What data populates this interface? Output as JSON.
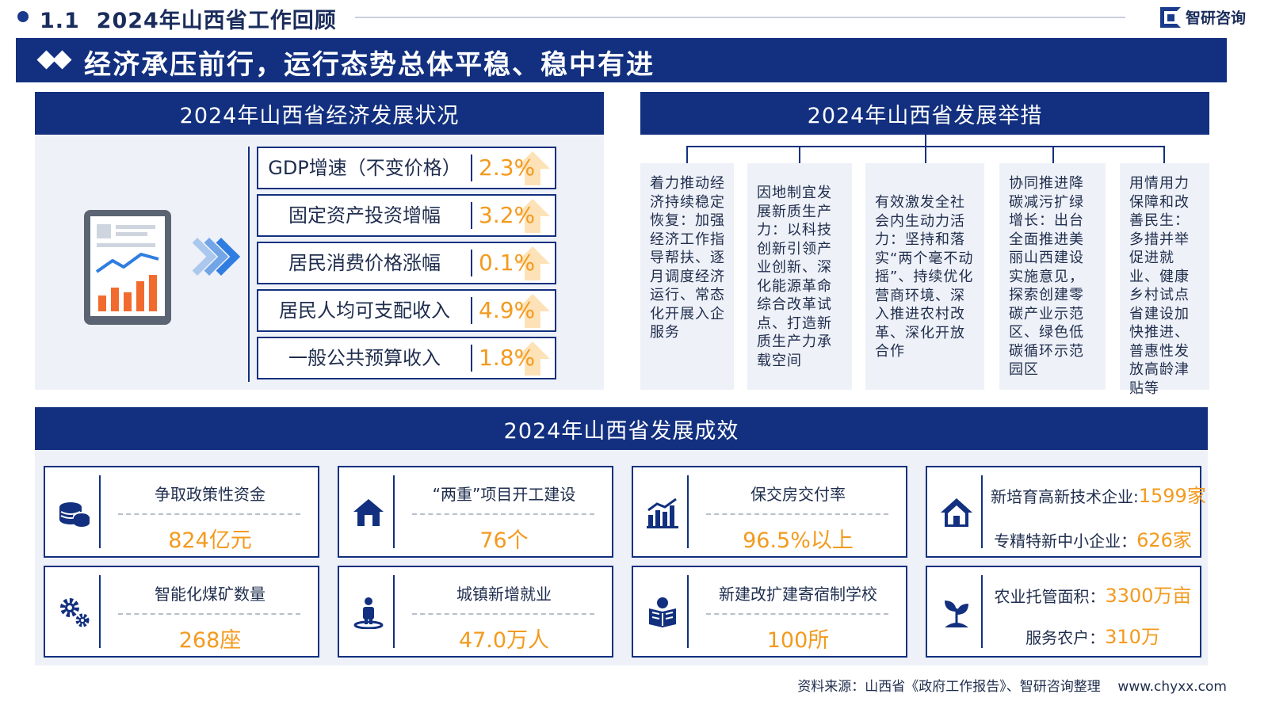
{
  "header": {
    "section_number": "1.1",
    "section_title": "2024年山西省工作回顾",
    "brand_name": "智研咨询"
  },
  "headline": "经济承压前行，运行态势总体平稳、稳中有进",
  "economy_panel": {
    "title": "2024年山西省经济发展状况",
    "indicators": [
      {
        "label": "GDP增速（不变价格）",
        "value": "2.3%"
      },
      {
        "label": "固定资产投资增幅",
        "value": "3.2%"
      },
      {
        "label": "居民消费价格涨幅",
        "value": "0.1%"
      },
      {
        "label": "居民人均可支配收入",
        "value": "4.9%"
      },
      {
        "label": "一般公共预算收入",
        "value": "1.8%"
      }
    ]
  },
  "measures_panel": {
    "title": "2024年山西省发展举措",
    "items": [
      "着力推动经济持续稳定恢复：加强经济工作指导帮扶、逐月调度经济运行、常态化开展入企服务",
      "因地制宜发展新质生产力：以科技创新引领产业创新、深化能源革命综合改革试点、打造新质生产力承载空间",
      "有效激发全社会内生动力活力：坚持和落实“两个毫不动摇”、持续优化营商环境、深入推进农村改革、深化开放合作",
      "协同推进降碳减污扩绿增长：出台全面推进美丽山西建设实施意见，探索创建零碳产业示范区、绿色低碳循环示范园区",
      "用情用力保障和改善民生：多措并举促进就业、健康乡村试点省建设加快推进、普惠性发放高龄津贴等"
    ]
  },
  "achievements": {
    "title": "2024年山西省发展成效",
    "cards": [
      {
        "icon": "coins-icon",
        "label": "争取政策性资金",
        "value": "824亿元"
      },
      {
        "icon": "house-icon",
        "label": "“两重”项目开工建设",
        "value": "76个"
      },
      {
        "icon": "bar-chart-icon",
        "label": "保交房交付率",
        "value": "96.5%以上"
      },
      {
        "icon": "building-icon",
        "rows": [
          {
            "label": "新培育高新技术企业:",
            "value": "1599家"
          },
          {
            "label": "专精特新中小企业：",
            "value": "626家"
          }
        ]
      },
      {
        "icon": "gears-icon",
        "label": "智能化煤矿数量",
        "value": "268座"
      },
      {
        "icon": "person-icon",
        "label": "城镇新增就业",
        "value": "47.0万人"
      },
      {
        "icon": "reader-icon",
        "label": "新建改扩建寄宿制学校",
        "value": "100所"
      },
      {
        "icon": "sprout-icon",
        "rows": [
          {
            "label": "农业托管面积：",
            "value": "3300万亩"
          },
          {
            "label": "服务农户：",
            "value": "310万"
          }
        ]
      }
    ]
  },
  "footer": {
    "source": "资料来源：山西省《政府工作报告》、智研咨询整理",
    "url": "www.chyxx.com"
  },
  "colors": {
    "navy": "#12307f",
    "accent_orange": "#f39a1e",
    "panel_bg": "#eef1f7"
  }
}
